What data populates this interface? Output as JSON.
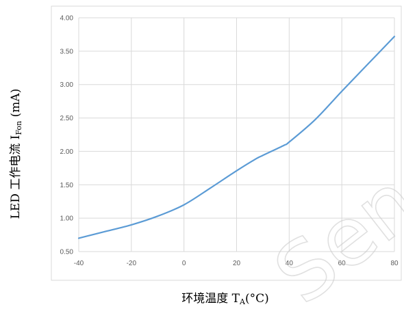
{
  "chart_data": {
    "type": "line",
    "title": "",
    "xlabel_main": "环境温度 T",
    "xlabel_sub": "A",
    "xlabel_tail": "(°C)",
    "ylabel_main": "LED 工作电流 I",
    "ylabel_sub": "Fon",
    "ylabel_tail": " (mA)",
    "xlim": [
      -40,
      80
    ],
    "ylim": [
      0.5,
      4.0
    ],
    "x_ticks": [
      -40,
      -20,
      0,
      20,
      40,
      60,
      80
    ],
    "y_ticks": [
      "0.50",
      "1.00",
      "1.50",
      "2.00",
      "2.50",
      "3.00",
      "3.50",
      "4.00"
    ],
    "grid": true,
    "series": [
      {
        "color": "#5b9bd5",
        "x": [
          -40,
          -30,
          -20,
          -10,
          0,
          10,
          20,
          27,
          30,
          38,
          40,
          50,
          60,
          70,
          80
        ],
        "y": [
          0.7,
          0.8,
          0.9,
          1.03,
          1.2,
          1.45,
          1.71,
          1.88,
          1.94,
          2.09,
          2.14,
          2.48,
          2.9,
          3.31,
          3.72
        ]
      }
    ]
  },
  "watermark": "Sen"
}
